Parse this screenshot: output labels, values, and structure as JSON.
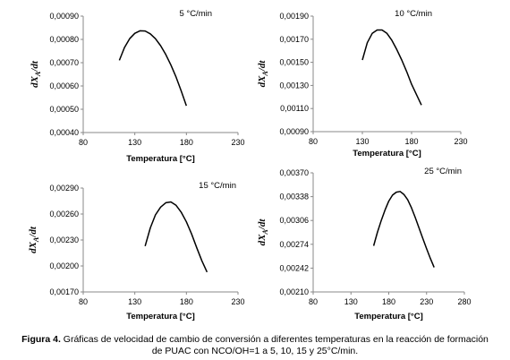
{
  "chart_data": [
    {
      "type": "line",
      "annotation": "5 °C/min",
      "ylabel": "dX_A/dt",
      "xlabel": "Temperatura [°C]",
      "xlim": [
        80,
        230
      ],
      "ylim": [
        0.0004,
        0.0009
      ],
      "x_ticks": [
        "80",
        "130",
        "180",
        "230"
      ],
      "y_ticks": [
        "0,00040",
        "0,00050",
        "0,00060",
        "0,00070",
        "0,00080",
        "0,00090"
      ],
      "x": [
        115,
        120,
        125,
        130,
        135,
        140,
        145,
        150,
        155,
        160,
        165,
        170,
        175,
        180
      ],
      "y": [
        0.00071,
        0.000765,
        0.000803,
        0.000826,
        0.000837,
        0.000836,
        0.000824,
        0.000803,
        0.000773,
        0.000735,
        0.00069,
        0.000638,
        0.000578,
        0.000515
      ]
    },
    {
      "type": "line",
      "annotation": "10 °C/min",
      "ylabel": "dX_A/dt",
      "xlabel": "Temperatura [°C]",
      "xlim": [
        80,
        230
      ],
      "ylim": [
        0.0009,
        0.0019
      ],
      "x_ticks": [
        "80",
        "130",
        "180",
        "230"
      ],
      "y_ticks": [
        "0,00090",
        "0,00110",
        "0,00130",
        "0,00150",
        "0,00170",
        "0,00190"
      ],
      "x": [
        130,
        135,
        140,
        145,
        150,
        155,
        160,
        165,
        170,
        175,
        180,
        185,
        190
      ],
      "y": [
        0.00152,
        0.00167,
        0.00175,
        0.00178,
        0.00178,
        0.00175,
        0.00169,
        0.00161,
        0.00152,
        0.00142,
        0.00131,
        0.00122,
        0.00113
      ]
    },
    {
      "type": "line",
      "annotation": "15 °C/min",
      "ylabel": "dX_A/dt",
      "xlabel": "Temperatura [°C]",
      "xlim": [
        80,
        230
      ],
      "ylim": [
        0.0017,
        0.0029
      ],
      "x_ticks": [
        "80",
        "130",
        "180",
        "230"
      ],
      "y_ticks": [
        "0,00170",
        "0,00200",
        "0,00230",
        "0,00260",
        "0,00290"
      ],
      "x": [
        140,
        145,
        150,
        155,
        160,
        165,
        170,
        175,
        180,
        185,
        190,
        195,
        200
      ],
      "y": [
        0.00223,
        0.00244,
        0.00259,
        0.00268,
        0.00273,
        0.00274,
        0.0027,
        0.00262,
        0.00251,
        0.00237,
        0.00221,
        0.00206,
        0.00193
      ]
    },
    {
      "type": "line",
      "annotation": "25 °C/min",
      "ylabel": "dX_A/dt",
      "xlabel": "Temperatura [°C]",
      "xlim": [
        80,
        280
      ],
      "ylim": [
        0.0021,
        0.0037
      ],
      "x_ticks": [
        "80",
        "130",
        "180",
        "230",
        "280"
      ],
      "y_ticks": [
        "0,00210",
        "0,00242",
        "0,00274",
        "0,00306",
        "0,00338",
        "0,00370"
      ],
      "x": [
        160,
        165,
        170,
        175,
        180,
        185,
        190,
        195,
        200,
        205,
        210,
        215,
        220,
        225,
        230,
        235,
        240
      ],
      "y": [
        0.00272,
        0.0029,
        0.00306,
        0.0032,
        0.00332,
        0.0034,
        0.00344,
        0.00345,
        0.00341,
        0.00334,
        0.00323,
        0.0031,
        0.00296,
        0.00282,
        0.00268,
        0.00255,
        0.00243
      ]
    }
  ],
  "caption": {
    "label": "Figura 4.",
    "line1": " Gráficas de velocidad de cambio de conversión a diferentes temperaturas en la reacción de formación",
    "line2": "de PUAC con NCO/OH=1 a 5, 10, 15 y 25°C/min."
  }
}
